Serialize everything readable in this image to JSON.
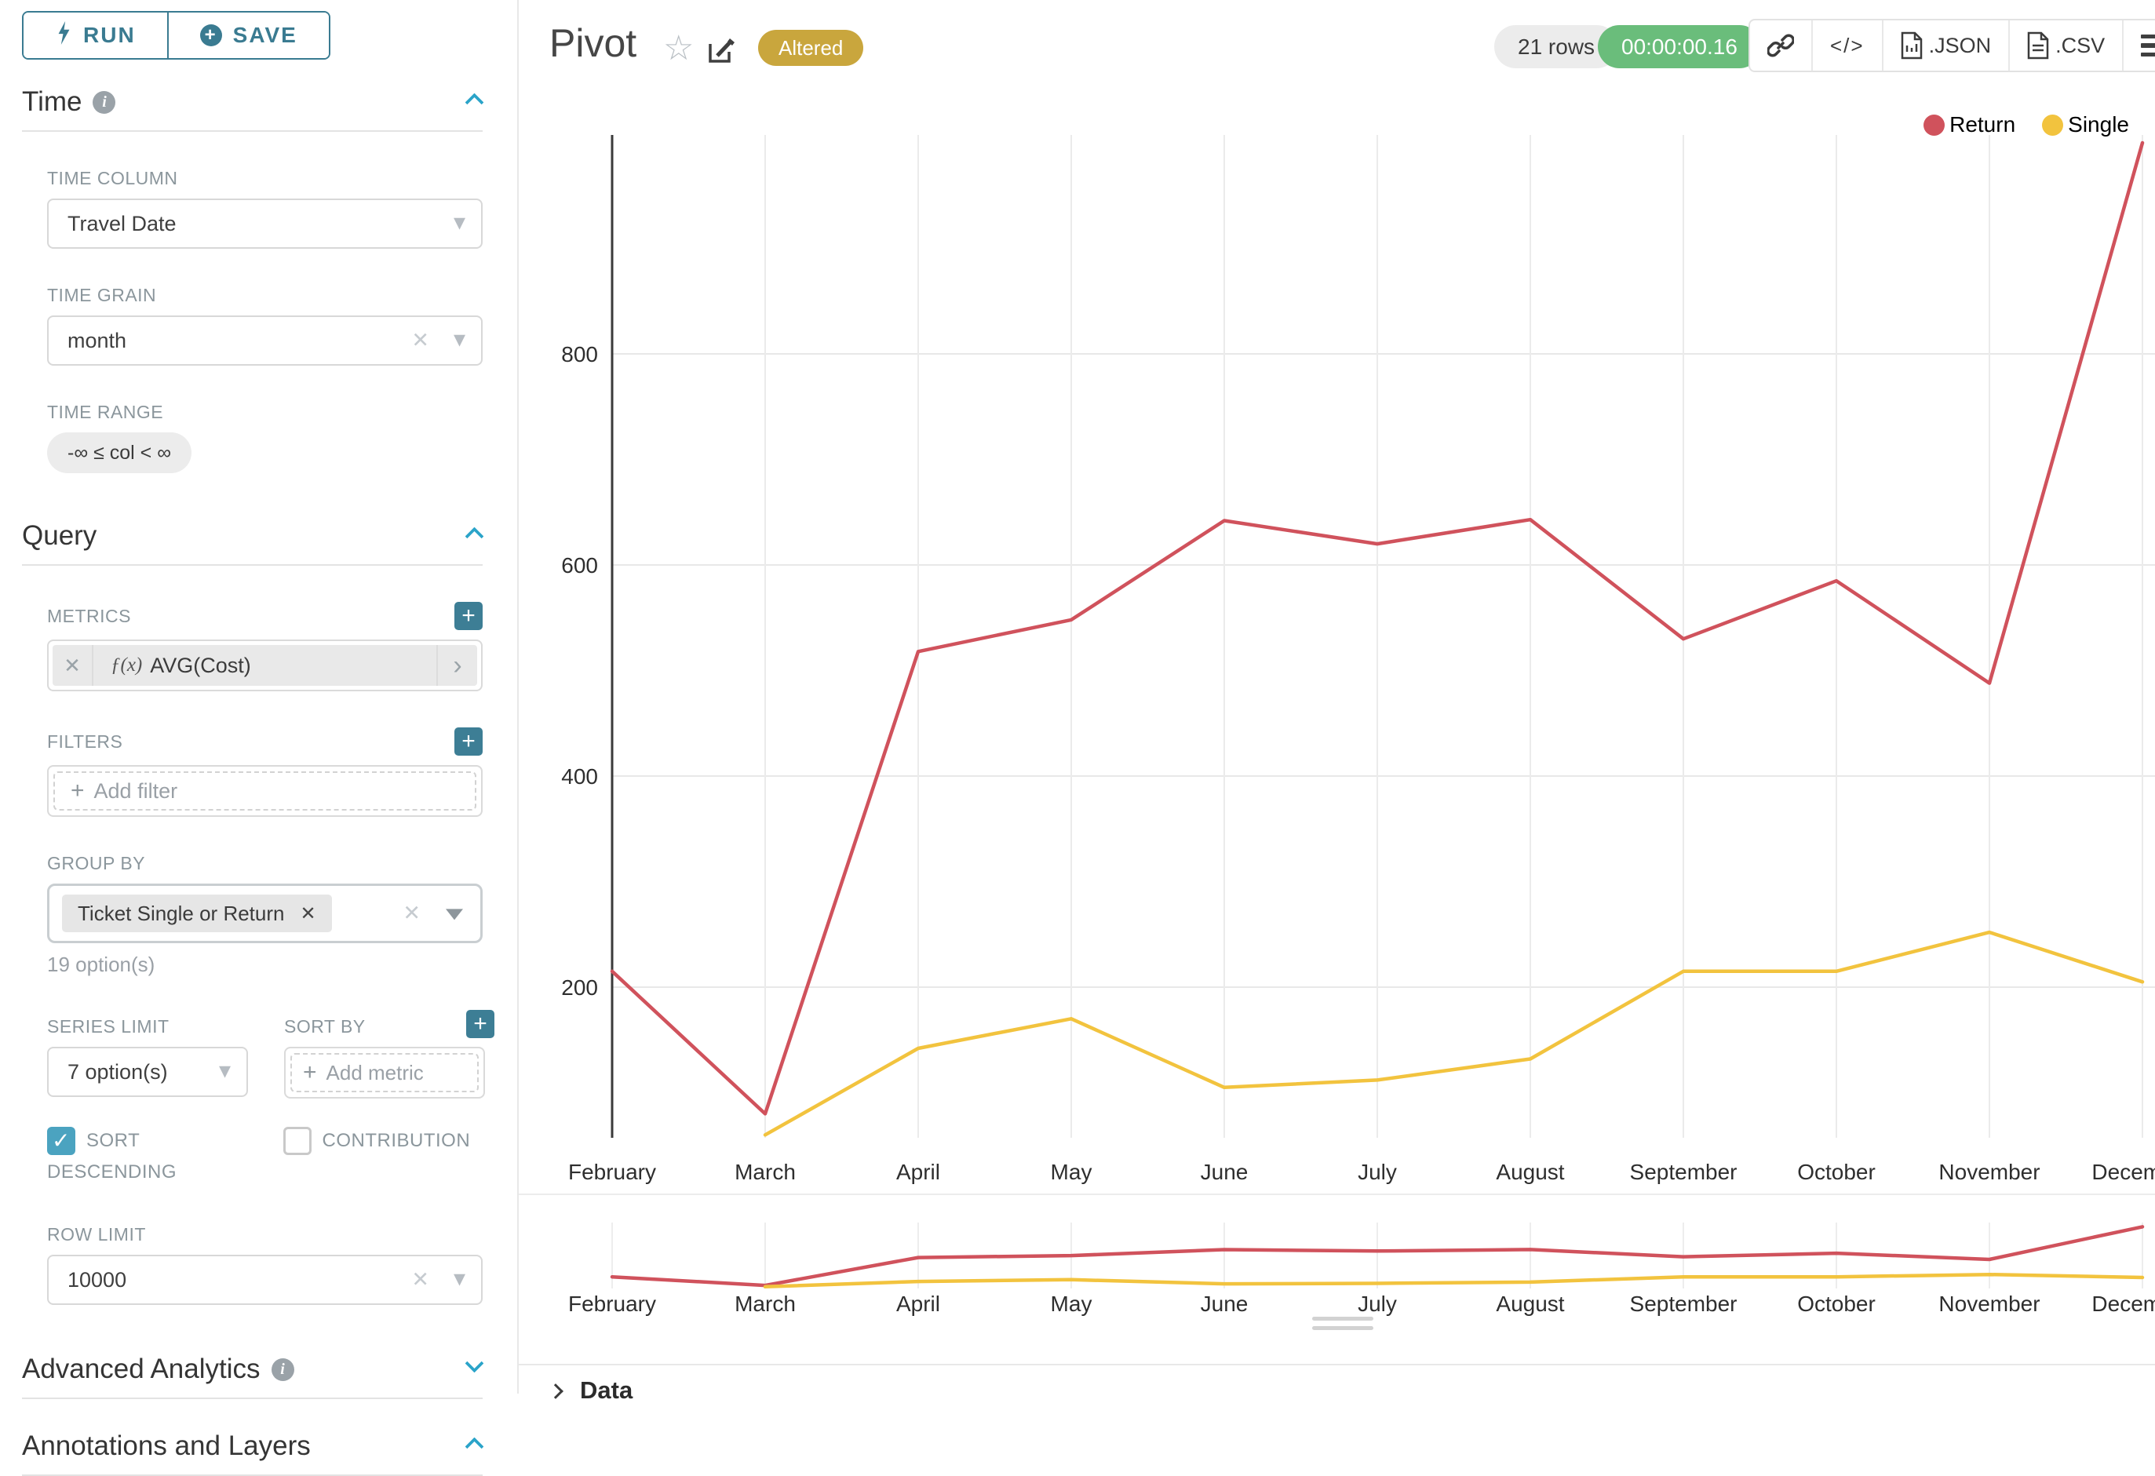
{
  "sidebar": {
    "run_label": "RUN",
    "save_label": "SAVE",
    "time": {
      "title": "Time",
      "time_column_label": "TIME COLUMN",
      "time_column_value": "Travel Date",
      "time_grain_label": "TIME GRAIN",
      "time_grain_value": "month",
      "time_range_label": "TIME RANGE",
      "time_range_value": "-∞ ≤ col < ∞"
    },
    "query": {
      "title": "Query",
      "metrics_label": "METRICS",
      "metric_fx": "ƒ(x)",
      "metric_value": "AVG(Cost)",
      "filters_label": "FILTERS",
      "add_filter_placeholder": "Add filter",
      "group_by_label": "GROUP BY",
      "group_by_value": "Ticket Single or Return",
      "group_by_options_hint": "19 option(s)",
      "series_limit_label": "SERIES LIMIT",
      "series_limit_value": "7 option(s)",
      "sort_by_label": "SORT BY",
      "add_metric_placeholder": "Add metric",
      "sort_descending_label": "SORT DESCENDING",
      "sort_descending_checked": true,
      "contribution_label": "CONTRIBUTION",
      "contribution_checked": false,
      "row_limit_label": "ROW LIMIT",
      "row_limit_value": "10000"
    },
    "advanced_title": "Advanced Analytics",
    "annotations_title": "Annotations and Layers"
  },
  "header": {
    "title": "Pivot",
    "altered_badge": "Altered",
    "rows_badge": "21 rows",
    "timer_badge": "00:00:00.16",
    "json_label": ".JSON",
    "csv_label": ".CSV"
  },
  "glyphs": {
    "clear": "✕",
    "caret": "▾",
    "chip_remove": "✕",
    "chevron_right": "›",
    "plus": "+",
    "star": "☆",
    "code": "</>",
    "check": "✓"
  },
  "data_panel_label": "Data",
  "colors": {
    "accent_teal": "#3d7e95",
    "chevron_blue": "#2ba4c9",
    "checkbox_blue": "#4ba3c0",
    "altered_gold": "#c9a63d",
    "timer_green": "#6abd7b",
    "return_red": "#d0525c",
    "single_yellow": "#f2c33e"
  },
  "chart_data": {
    "type": "line",
    "title": "Pivot",
    "xlabel": "",
    "ylabel": "",
    "categories": [
      "February",
      "March",
      "April",
      "May",
      "June",
      "July",
      "August",
      "September",
      "October",
      "November",
      "December"
    ],
    "series": [
      {
        "name": "Return",
        "color": "#d0525c",
        "values": [
          215,
          80,
          518,
          548,
          642,
          620,
          643,
          530,
          585,
          488,
          1000
        ]
      },
      {
        "name": "Single",
        "color": "#f2c33e",
        "values": [
          null,
          60,
          142,
          170,
          105,
          112,
          132,
          215,
          215,
          252,
          205
        ]
      }
    ],
    "yticks": [
      200,
      400,
      600,
      800
    ],
    "ylim": [
      57,
      1007
    ],
    "grid": true,
    "legend_position": "top-right",
    "has_context_brush_chart": true
  }
}
